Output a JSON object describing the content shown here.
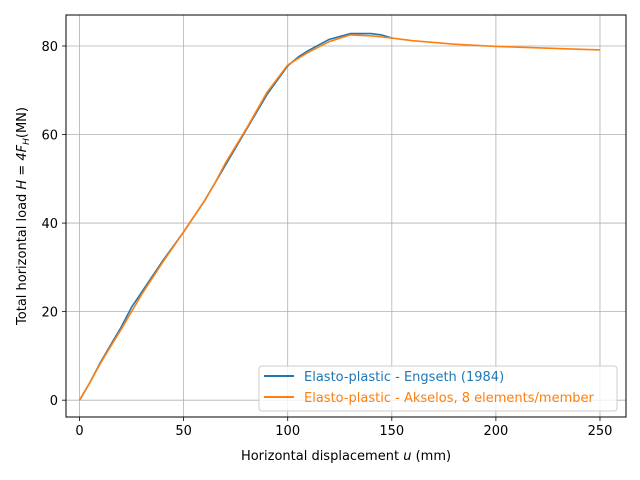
{
  "chart_data": {
    "type": "line",
    "xlabel_prefix": "Horizontal displacement ",
    "xlabel_var": "u",
    "xlabel_suffix": " (mm)",
    "ylabel_prefix": "Total horizontal load ",
    "ylabel_math": "H = 4F",
    "ylabel_sub": "H",
    "ylabel_suffix": "(MN)",
    "xlim": [
      -6.5,
      262.5
    ],
    "ylim": [
      -3.8,
      87.0
    ],
    "xticks": [
      0,
      50,
      100,
      150,
      200,
      250
    ],
    "yticks": [
      0,
      20,
      40,
      60,
      80
    ],
    "grid": true,
    "legend_position": "lower-right",
    "series": [
      {
        "name": "Elasto-plastic - Engseth (1984)",
        "color": "#1f77b4",
        "x": [
          0,
          5,
          10,
          15,
          20,
          25,
          30,
          40,
          50,
          60,
          70,
          80,
          90,
          100,
          105,
          110,
          120,
          130,
          140,
          145,
          150
        ],
        "y": [
          0,
          4,
          8.5,
          12.5,
          16.5,
          21,
          24.5,
          31.5,
          38,
          45,
          53,
          61,
          69,
          75.5,
          77.5,
          79,
          81.5,
          82.8,
          82.8,
          82.5,
          81.8
        ]
      },
      {
        "name": "Elasto-plastic - Akselos, 8 elements/member",
        "color": "#ff7f0e",
        "x": [
          0,
          5,
          10,
          15,
          20,
          25,
          30,
          40,
          50,
          60,
          65,
          70,
          80,
          90,
          100,
          105,
          110,
          120,
          130,
          140,
          150,
          160,
          180,
          200,
          225,
          250
        ],
        "y": [
          0,
          4,
          8.3,
          12.2,
          16,
          20,
          24,
          31.2,
          38,
          45,
          49,
          53.5,
          61.2,
          69.5,
          75.7,
          77.2,
          78.6,
          81,
          82.5,
          82.3,
          81.8,
          81.2,
          80.4,
          79.9,
          79.5,
          79.1
        ]
      }
    ]
  }
}
